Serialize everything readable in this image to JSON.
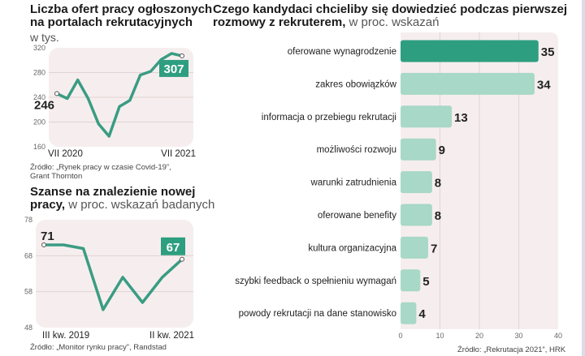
{
  "panels": {
    "offers": {
      "title_line1": "Liczba ofert pracy ogłoszonych",
      "title_line2": "na portalach rekrutacyjnych",
      "unit": "w tys.",
      "source_line1": "Źródło: „Rynek pracy w czasie Covid-19”,",
      "source_line2": "Grant Thornton"
    },
    "chances": {
      "title_line1": "Szanse na znalezienie nowej",
      "title_line2_bold": "pracy,",
      "title_line2_thin": " w proc. wskazań badanych",
      "source": "Źródło: „Monitor rynku pracy”, Randstad"
    },
    "candidates": {
      "title_line1": "Czego kandydaci chcieliby się dowiedzieć podczas pierwszej",
      "title_line2_bold": "rozmowy z rekruterem,",
      "title_line2_thin": " w proc. wskazań",
      "source": "Źródło: „Rekrutacja 2021”, HRK"
    }
  },
  "colors": {
    "accent": "#2e9e80",
    "line": "#3a9c83",
    "bar": "#a8d8c7",
    "bar_highlight": "#2e9e80",
    "panel_bg": "#f6eeee"
  },
  "chart_data": [
    {
      "type": "line",
      "title": "Liczba ofert pracy ogłoszonych na portalach rekrutacyjnych",
      "ylabel": "w tys.",
      "ylim": [
        160,
        320
      ],
      "yticks": [
        160,
        200,
        240,
        280,
        320
      ],
      "x_start_label": "VII 2020",
      "x_end_label": "VII 2021",
      "values": [
        246,
        238,
        268,
        238,
        197,
        177,
        225,
        235,
        276,
        282,
        301,
        311,
        307
      ],
      "start_value_label": "246",
      "end_value_label": "307"
    },
    {
      "type": "line",
      "title": "Szanse na znalezienie nowej pracy",
      "ylabel": "w proc. wskazań badanych",
      "ylim": [
        48,
        78
      ],
      "yticks": [
        48,
        58,
        68,
        78
      ],
      "x_start_label": "III kw. 2019",
      "x_end_label": "II kw. 2021",
      "values": [
        71,
        71,
        70,
        53,
        62,
        55,
        62,
        67
      ],
      "start_value_label": "71",
      "end_value_label": "67"
    },
    {
      "type": "bar",
      "orientation": "horizontal",
      "title": "Czego kandydaci chcieliby się dowiedzieć podczas pierwszej rozmowy z rekruterem",
      "ylabel": "w proc. wskazań",
      "xlim": [
        0,
        40
      ],
      "xticks": [
        0,
        10,
        20,
        30,
        40
      ],
      "categories": [
        "oferowane wynagrodzenie",
        "zakres obowiązków",
        "informacja o przebiegu rekrutacji",
        "możliwości rozwoju",
        "warunki zatrudnienia",
        "oferowane benefity",
        "kultura organizacyjna",
        "szybki feedback o spełnieniu wymagań",
        "powody rekrutacji na dane stanowisko"
      ],
      "values": [
        35,
        34,
        13,
        9,
        8,
        8,
        7,
        5,
        4
      ]
    }
  ]
}
